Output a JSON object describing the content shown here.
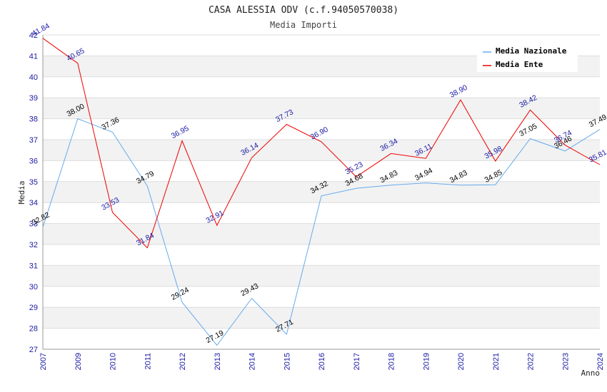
{
  "chart_data": {
    "type": "line",
    "title": "CASA ALESSIA ODV (c.f.94050570038)",
    "subtitle": "Media Importi",
    "xlabel": "Anno",
    "ylabel": "Media",
    "ylim": [
      27,
      42
    ],
    "yticks": [
      "27",
      "28",
      "29",
      "30",
      "31",
      "32",
      "33",
      "34",
      "35",
      "36",
      "37",
      "38",
      "39",
      "40",
      "41",
      "42"
    ],
    "x": [
      "2007",
      "2009",
      "2010",
      "2011",
      "2012",
      "2013",
      "2014",
      "2015",
      "2016",
      "2017",
      "2018",
      "2019",
      "2020",
      "2021",
      "2022",
      "2023",
      "2024"
    ],
    "series": [
      {
        "name": "Media Nazionale",
        "color": "#66aaee",
        "label_color": "#000000",
        "values": [
          32.82,
          38.0,
          37.36,
          34.79,
          29.24,
          27.19,
          29.43,
          27.71,
          34.32,
          34.68,
          34.83,
          34.94,
          34.83,
          34.85,
          37.05,
          36.46,
          37.49
        ],
        "labels": [
          "32.82",
          "38.00",
          "37.36",
          "34.79",
          "29.24",
          "27.19",
          "29.43",
          "27.71",
          "34.32",
          "34.68",
          "34.83",
          "34.94",
          "34.83",
          "34.85",
          "37.05",
          "36.46",
          "37.49"
        ]
      },
      {
        "name": "Media Ente",
        "color": "#ee0000",
        "label_color": "#1a1aa6",
        "values": [
          41.84,
          40.65,
          33.53,
          31.84,
          36.95,
          32.91,
          36.14,
          37.73,
          36.9,
          35.23,
          36.34,
          36.11,
          38.9,
          35.98,
          38.42,
          36.74,
          35.81
        ],
        "labels": [
          "41.84",
          "40.65",
          "33.53",
          "31.84",
          "36.95",
          "32.91",
          "36.14",
          "37.73",
          "36.90",
          "35.23",
          "36.34",
          "36.11",
          "38.90",
          "35.98",
          "38.42",
          "36.74",
          "35.81"
        ]
      }
    ],
    "legend_position": "top-right",
    "grid": true
  }
}
